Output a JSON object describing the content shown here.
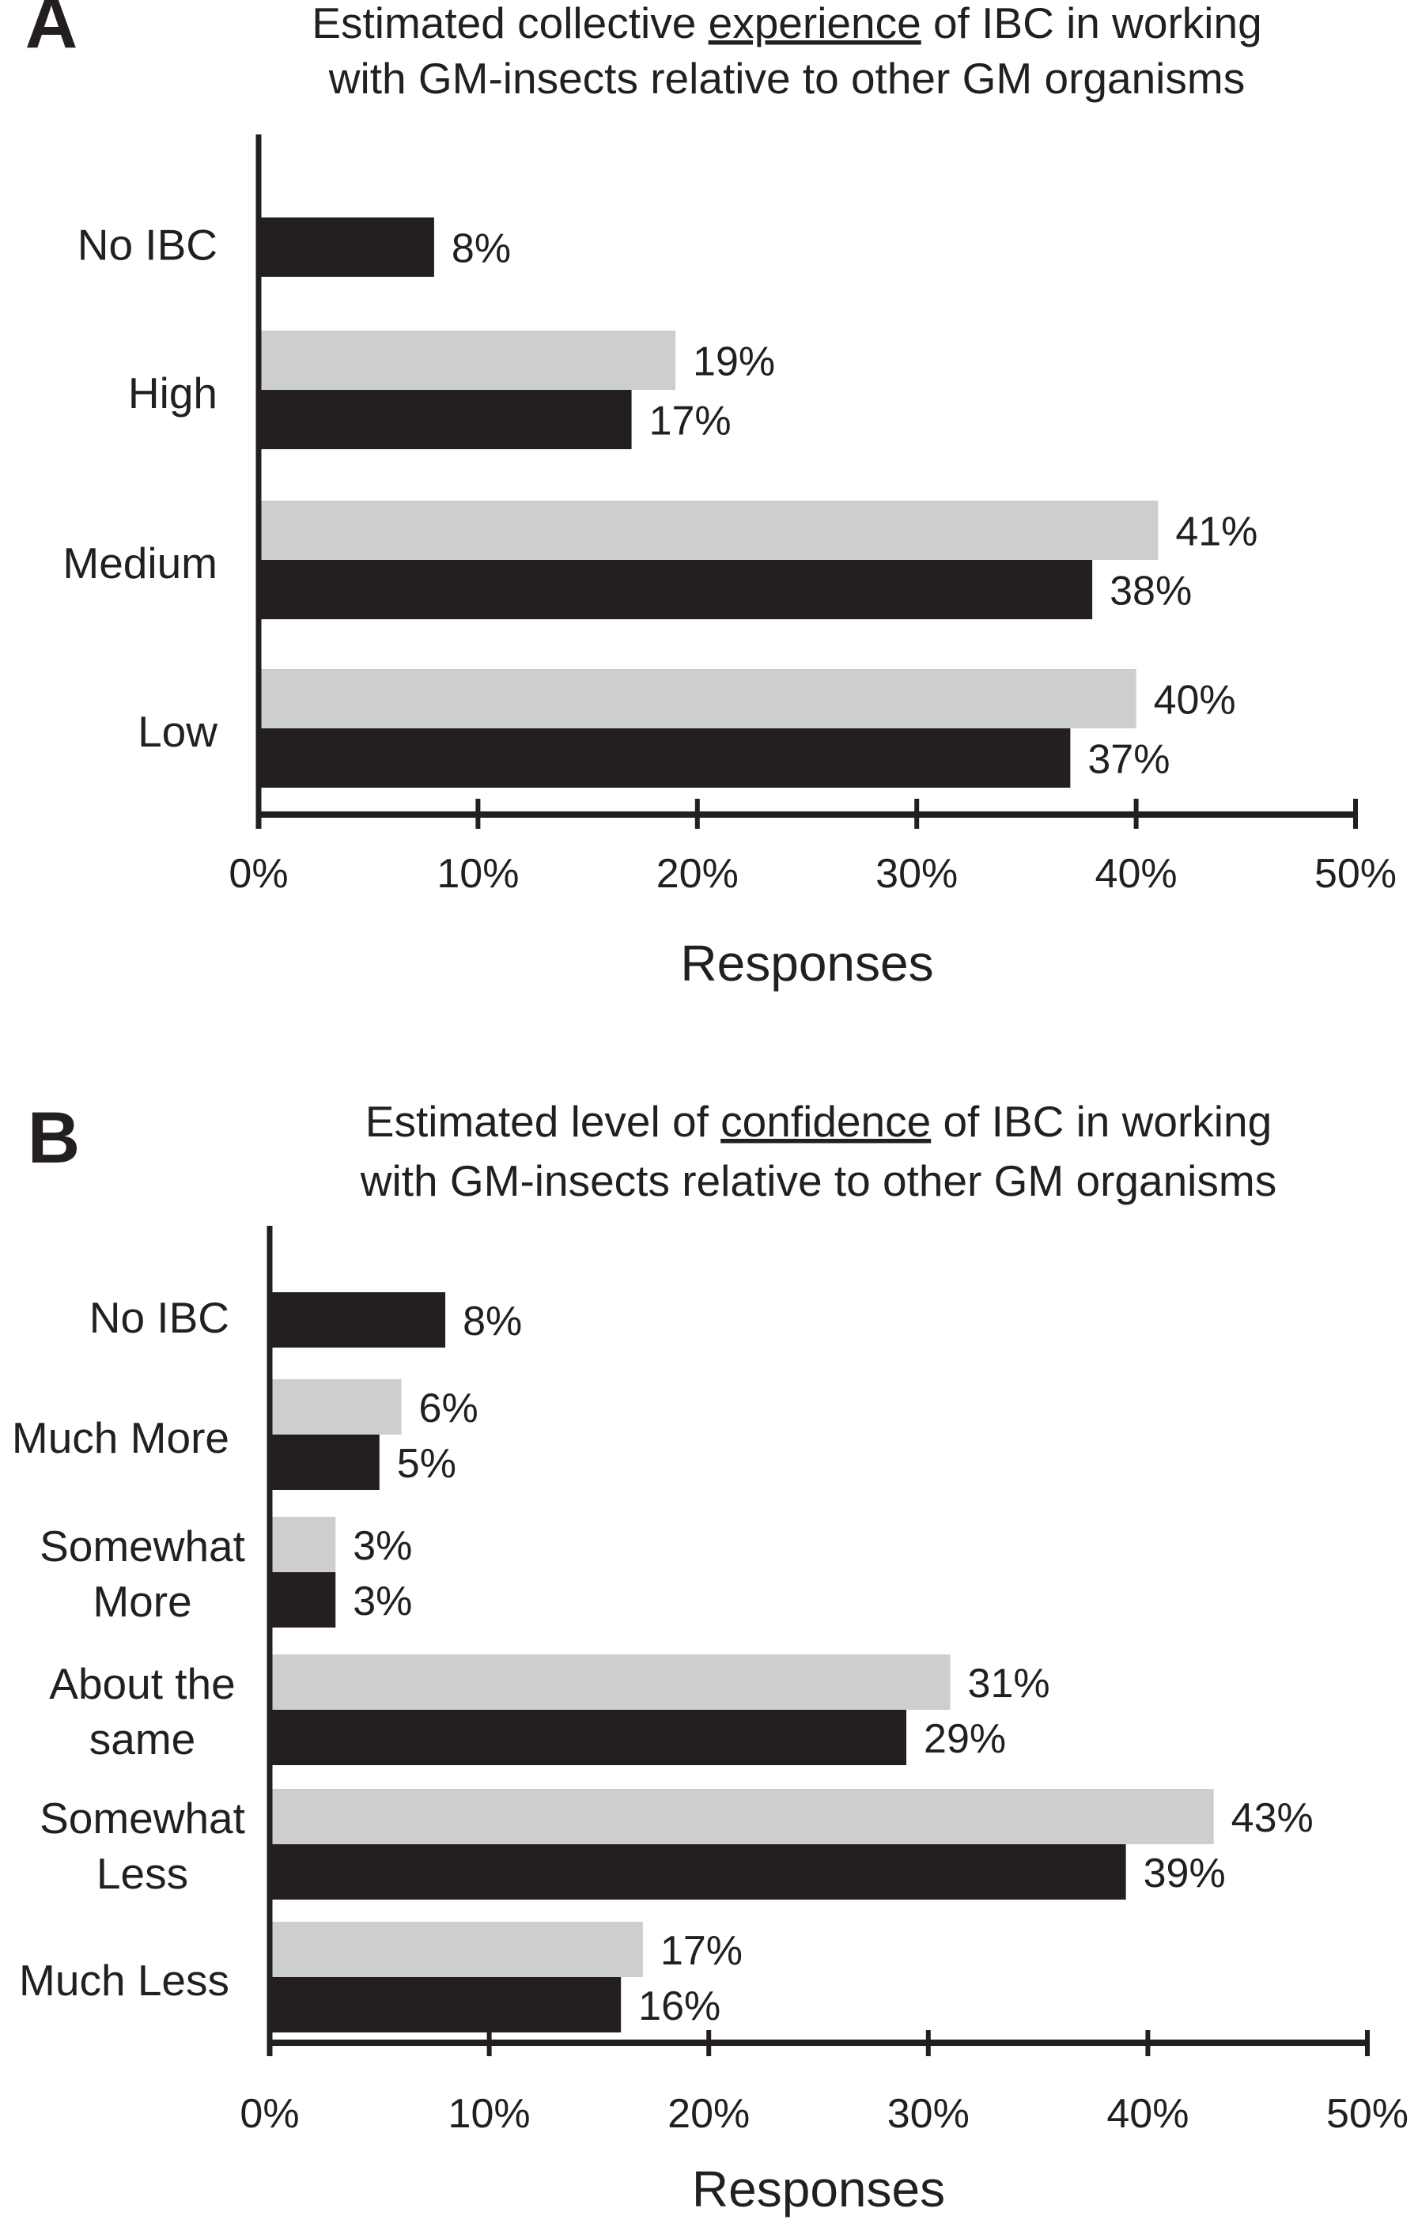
{
  "colors": {
    "series_gray": "#cdced0",
    "series_black": "#231f20",
    "axis": "#231f20"
  },
  "chart_data": [
    {
      "type": "bar",
      "orientation": "horizontal",
      "panel_letter": "A",
      "title_parts": [
        "Estimated collective ",
        "experience",
        " of IBC in working"
      ],
      "title_line2": "with GM-insects relative to other GM organisms",
      "title_underlined_word": "experience",
      "categories": [
        "No IBC",
        "High",
        "Medium",
        "Low"
      ],
      "series": [
        {
          "name": "gray",
          "values": [
            null,
            19,
            41,
            40
          ],
          "labels": [
            "",
            "19%",
            "41%",
            "40%"
          ]
        },
        {
          "name": "black",
          "values": [
            8,
            17,
            38,
            37
          ],
          "labels": [
            "8%",
            "17%",
            "38%",
            "37%"
          ]
        }
      ],
      "xlabel": "Responses",
      "ylabel": "",
      "xlim": [
        0,
        50
      ],
      "xticks": [
        "0%",
        "10%",
        "20%",
        "30%",
        "40%",
        "50%"
      ],
      "grid": false,
      "legend": "none"
    },
    {
      "type": "bar",
      "orientation": "horizontal",
      "panel_letter": "B",
      "title_parts": [
        "Estimated level of ",
        "confidence",
        " of IBC in working"
      ],
      "title_line2": "with GM-insects relative to other GM organisms",
      "title_underlined_word": "confidence",
      "categories": [
        "No IBC",
        "Much More",
        "Somewhat More",
        "About the same",
        "Somewhat Less",
        "Much Less"
      ],
      "category_lines": [
        [
          "No IBC"
        ],
        [
          "Much More"
        ],
        [
          "Somewhat",
          "More"
        ],
        [
          "About the",
          "same"
        ],
        [
          "Somewhat",
          "Less"
        ],
        [
          "Much Less"
        ]
      ],
      "series": [
        {
          "name": "gray",
          "values": [
            null,
            6,
            3,
            31,
            43,
            17
          ],
          "labels": [
            "",
            "6%",
            "3%",
            "31%",
            "43%",
            "17%"
          ]
        },
        {
          "name": "black",
          "values": [
            8,
            5,
            3,
            29,
            39,
            16
          ],
          "labels": [
            "8%",
            "5%",
            "3%",
            "29%",
            "39%",
            "16%"
          ]
        }
      ],
      "xlabel": "Responses",
      "ylabel": "",
      "xlim": [
        0,
        50
      ],
      "xticks": [
        "0%",
        "10%",
        "20%",
        "30%",
        "40%",
        "50%"
      ],
      "grid": false,
      "legend": "none"
    }
  ]
}
